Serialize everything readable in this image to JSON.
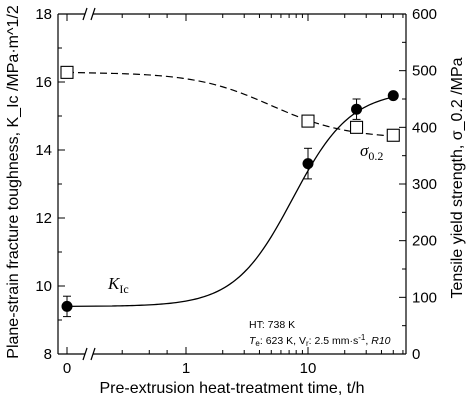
{
  "chart_data": {
    "type": "line",
    "xlabel": "Pre-extrusion heat-treatment time, t/h",
    "ylabel_left": "Plane-strain fracture toughness, K_Ic /MPa·m^1/2",
    "ylabel_right": "Tensile yield strength, σ_0.2 /MPa",
    "x_ticks": [
      "0",
      "1",
      "10"
    ],
    "x_scale": "log (broken axis at 0)",
    "ylim_left": [
      8,
      18
    ],
    "yticks_left": [
      "8",
      "10",
      "12",
      "14",
      "16",
      "18"
    ],
    "ylim_right": [
      0,
      600
    ],
    "yticks_right": [
      "0",
      "100",
      "200",
      "300",
      "400",
      "500",
      "600"
    ],
    "grid": false,
    "series": [
      {
        "name": "K_Ic",
        "axis": "left",
        "marker": "filled-circle",
        "line": "solid",
        "x": [
          0,
          10,
          25,
          50
        ],
        "y": [
          9.4,
          13.6,
          15.2,
          15.6
        ],
        "yerr": [
          0.3,
          0.45,
          0.3,
          0.0
        ]
      },
      {
        "name": "σ_0.2",
        "axis": "right",
        "marker": "open-square",
        "line": "dashed",
        "x": [
          0,
          10,
          25,
          50
        ],
        "y": [
          497,
          411,
          400,
          386
        ]
      }
    ],
    "annotation": {
      "line1": "HT: 738 K",
      "line2_prefix": "T",
      "line2_sub": "e",
      "line2_mid": ": 623 K, V",
      "line2_sub2": "r",
      "line2_mid2": ": 2.5 mm·s",
      "line2_sup": "-1",
      "line2_end": ", ",
      "line2_italic_end": "R10"
    },
    "labels": {
      "kic_main": "K",
      "kic_sub": "Ic",
      "sigma_main": "σ",
      "sigma_sub": "0.2"
    }
  }
}
